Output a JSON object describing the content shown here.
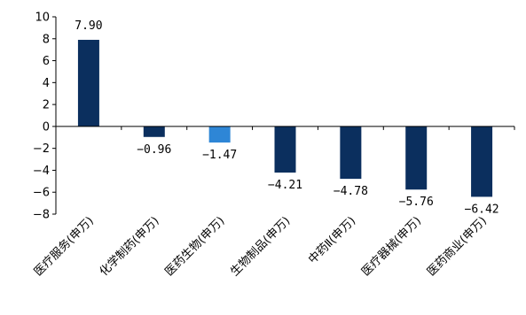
{
  "chart_data": {
    "type": "bar",
    "categories": [
      "医疗服务(申万)",
      "化学制药(申万)",
      "医药生物(申万)",
      "生物制品(申万)",
      "中药Ⅱ(申万)",
      "医疗器械(申万)",
      "医药商业(申万)"
    ],
    "values": [
      7.9,
      -0.96,
      -1.47,
      -4.21,
      -4.78,
      -5.76,
      -6.42
    ],
    "value_labels": [
      "7.90",
      "-0.96",
      "-1.47",
      "-4.21",
      "-4.78",
      "-5.76",
      "-6.42"
    ],
    "ylim": [
      -8,
      10
    ],
    "yticks": [
      -8,
      -6,
      -4,
      -2,
      0,
      2,
      4,
      6,
      8,
      10
    ],
    "bar_colors": [
      "#0b2f5e",
      "#0b2f5e",
      "#2e86d6",
      "#0b2f5e",
      "#0b2f5e",
      "#0b2f5e",
      "#0b2f5e"
    ],
    "grid": false,
    "legend": "none",
    "title": "",
    "xlabel": "",
    "ylabel": ""
  }
}
